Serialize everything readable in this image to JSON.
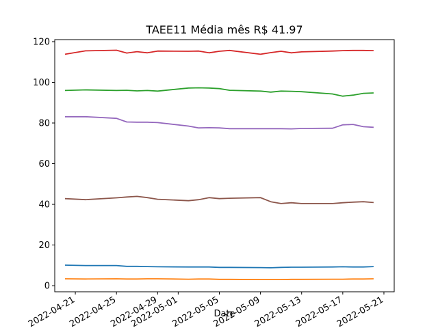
{
  "chart_data": {
    "type": "line",
    "title": "TAEE11 Média mês R$ 41.97",
    "xlabel": "Date",
    "ylabel": "",
    "ylim": [
      -3,
      121
    ],
    "xlim": [
      "2022-04-19",
      "2022-05-22"
    ],
    "grid": false,
    "legend": "none",
    "x": [
      "2022-04-20",
      "2022-04-22",
      "2022-04-25",
      "2022-04-26",
      "2022-04-27",
      "2022-04-28",
      "2022-04-29",
      "2022-05-02",
      "2022-05-03",
      "2022-05-04",
      "2022-05-05",
      "2022-05-06",
      "2022-05-09",
      "2022-05-10",
      "2022-05-11",
      "2022-05-12",
      "2022-05-13",
      "2022-05-16",
      "2022-05-17",
      "2022-05-18",
      "2022-05-19",
      "2022-05-20"
    ],
    "series": [
      {
        "color": "#d62728",
        "values": [
          113.8,
          115.5,
          115.8,
          114.4,
          115.1,
          114.5,
          115.4,
          115.3,
          115.4,
          114.5,
          115.3,
          115.7,
          113.8,
          114.6,
          115.3,
          114.5,
          115.0,
          115.4,
          115.6,
          115.7,
          115.7,
          115.6
        ]
      },
      {
        "color": "#2ca02c",
        "values": [
          96.0,
          96.3,
          96.0,
          96.1,
          95.8,
          96.0,
          95.7,
          97.2,
          97.3,
          97.2,
          96.9,
          96.1,
          95.7,
          95.2,
          95.7,
          95.6,
          95.4,
          94.3,
          93.2,
          93.7,
          94.6,
          94.8
        ]
      },
      {
        "color": "#9467bd",
        "values": [
          83.1,
          83.1,
          82.3,
          80.5,
          80.4,
          80.4,
          80.2,
          78.5,
          77.6,
          77.7,
          77.6,
          77.2,
          77.2,
          77.2,
          77.2,
          77.1,
          77.3,
          77.4,
          79.1,
          79.3,
          78.2,
          77.9
        ]
      },
      {
        "color": "#8c564b",
        "values": [
          42.8,
          42.3,
          43.2,
          43.6,
          43.9,
          43.3,
          42.5,
          41.8,
          42.3,
          43.3,
          42.8,
          43.0,
          43.3,
          41.3,
          40.4,
          40.8,
          40.4,
          40.4,
          40.8,
          41.1,
          41.3,
          40.9
        ]
      },
      {
        "color": "#1f77b4",
        "values": [
          10.1,
          9.9,
          9.9,
          9.5,
          9.5,
          9.4,
          9.3,
          9.2,
          9.2,
          9.2,
          9.0,
          9.0,
          8.9,
          8.8,
          9.0,
          9.1,
          9.1,
          9.2,
          9.3,
          9.2,
          9.2,
          9.4
        ]
      },
      {
        "color": "#ff7f0e",
        "values": [
          3.4,
          3.3,
          3.4,
          3.3,
          3.3,
          3.4,
          3.4,
          3.2,
          3.3,
          3.3,
          3.1,
          3.1,
          3.0,
          3.0,
          3.0,
          3.1,
          3.1,
          3.2,
          3.2,
          3.3,
          3.3,
          3.4
        ]
      }
    ],
    "xticks": [
      "2022-04-21",
      "2022-04-25",
      "2022-04-29",
      "2022-05-01",
      "2022-05-05",
      "2022-05-09",
      "2022-05-13",
      "2022-05-17",
      "2022-05-21"
    ],
    "yticks": [
      0,
      20,
      40,
      60,
      80,
      100,
      120
    ]
  }
}
